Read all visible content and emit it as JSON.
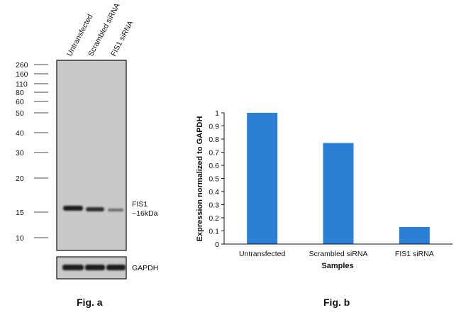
{
  "figure_a": {
    "lane_labels": [
      "Untransfected",
      "Scrambled siRNA",
      "FIS1 siRNA"
    ],
    "marker_labels": [
      "260",
      "160",
      "110",
      "80",
      "60",
      "50",
      "40",
      "30",
      "20",
      "15",
      "10"
    ],
    "band_label_line1": "FIS1",
    "band_label_line2": "~16kDa",
    "loading_control_label": "GAPDH",
    "caption": "Fig. a"
  },
  "figure_b": {
    "caption": "Fig. b"
  },
  "chart_data": {
    "type": "bar",
    "categories": [
      "Untransfected",
      "Scrambled siRNA",
      "FIS1 siRNA"
    ],
    "values": [
      1.0,
      0.77,
      0.13
    ],
    "xlabel": "Samples",
    "ylabel": "Expression normalized to GAPDH",
    "ylim": [
      0,
      1
    ],
    "yticks": [
      0,
      0.1,
      0.2,
      0.3,
      0.4,
      0.5,
      0.6,
      0.7,
      0.8,
      0.9,
      1
    ],
    "ytick_labels": [
      "0",
      "0.1",
      "0.2",
      "0.3",
      "0.4",
      "0.5",
      "0.6",
      "0.7",
      "0.8",
      "0.9",
      "1"
    ],
    "grid": false,
    "legend": "none",
    "bar_color": "#2b7fd4"
  }
}
